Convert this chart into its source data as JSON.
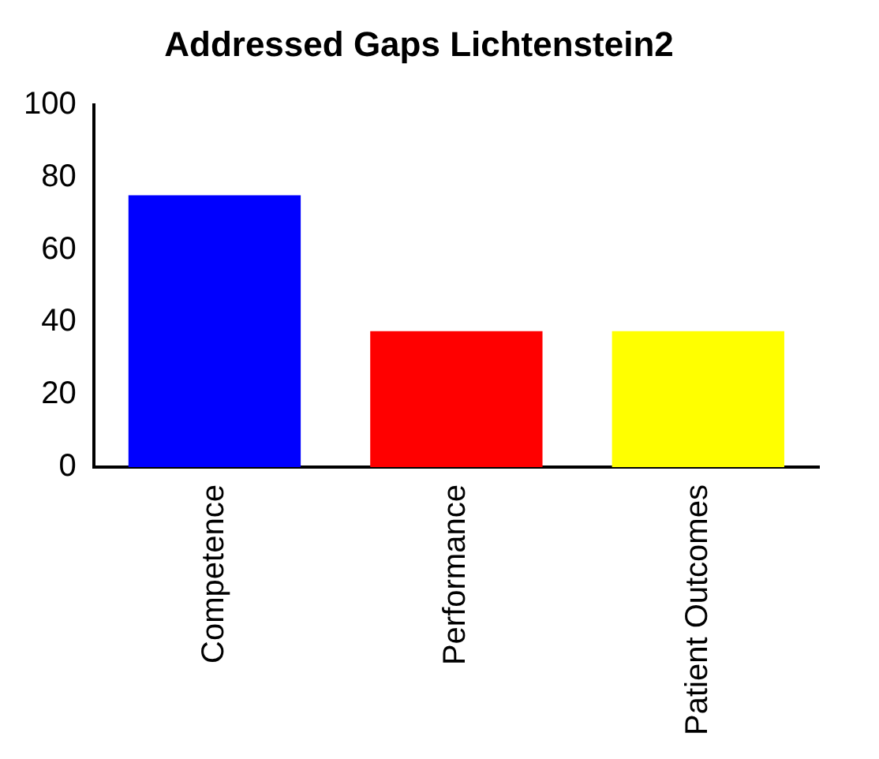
{
  "chart_data": {
    "type": "bar",
    "title": "Addressed Gaps Lichtenstein2",
    "categories": [
      "Competence",
      "Performance",
      "Patient Outcomes"
    ],
    "values": [
      75,
      37.5,
      37.5
    ],
    "colors": [
      "#0000ff",
      "#ff0000",
      "#ffff00"
    ],
    "ylim": [
      0,
      100
    ],
    "yticks": [
      0,
      20,
      40,
      60,
      80,
      100
    ],
    "grid": false,
    "legend": false
  }
}
